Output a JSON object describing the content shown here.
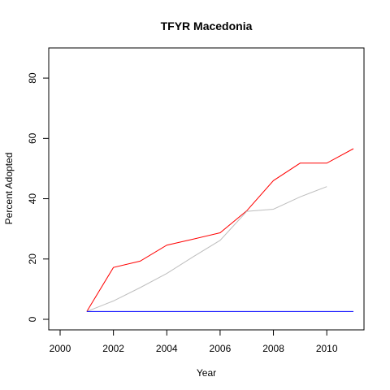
{
  "chart_data": {
    "type": "line",
    "title": "TFYR Macedonia",
    "xlabel": "Year",
    "ylabel": "Percent Adopted",
    "xlim": [
      2000,
      2011
    ],
    "ylim": [
      0,
      90
    ],
    "xticks": [
      2000,
      2002,
      2004,
      2006,
      2008,
      2010
    ],
    "yticks": [
      0,
      20,
      40,
      60,
      80
    ],
    "legend": "none",
    "grid": false,
    "series": [
      {
        "color": "#ff0000",
        "x": [
          2001,
          2002,
          2003,
          2004,
          2005,
          2006,
          2007,
          2008,
          2009,
          2010,
          2011
        ],
        "y": [
          2.6,
          17.2,
          19.3,
          24.6,
          26.6,
          28.7,
          36.0,
          46.0,
          51.8,
          51.8,
          56.6
        ]
      },
      {
        "color": "#bebebe",
        "x": [
          2001,
          2002,
          2003,
          2004,
          2005,
          2006,
          2007,
          2008,
          2009,
          2010
        ],
        "y": [
          2.6,
          6.1,
          10.5,
          15.2,
          20.8,
          26.2,
          35.8,
          36.5,
          40.6,
          44.0
        ]
      },
      {
        "color": "#0000ff",
        "x": [
          2001,
          2011
        ],
        "y": [
          2.6,
          2.6
        ]
      }
    ]
  }
}
